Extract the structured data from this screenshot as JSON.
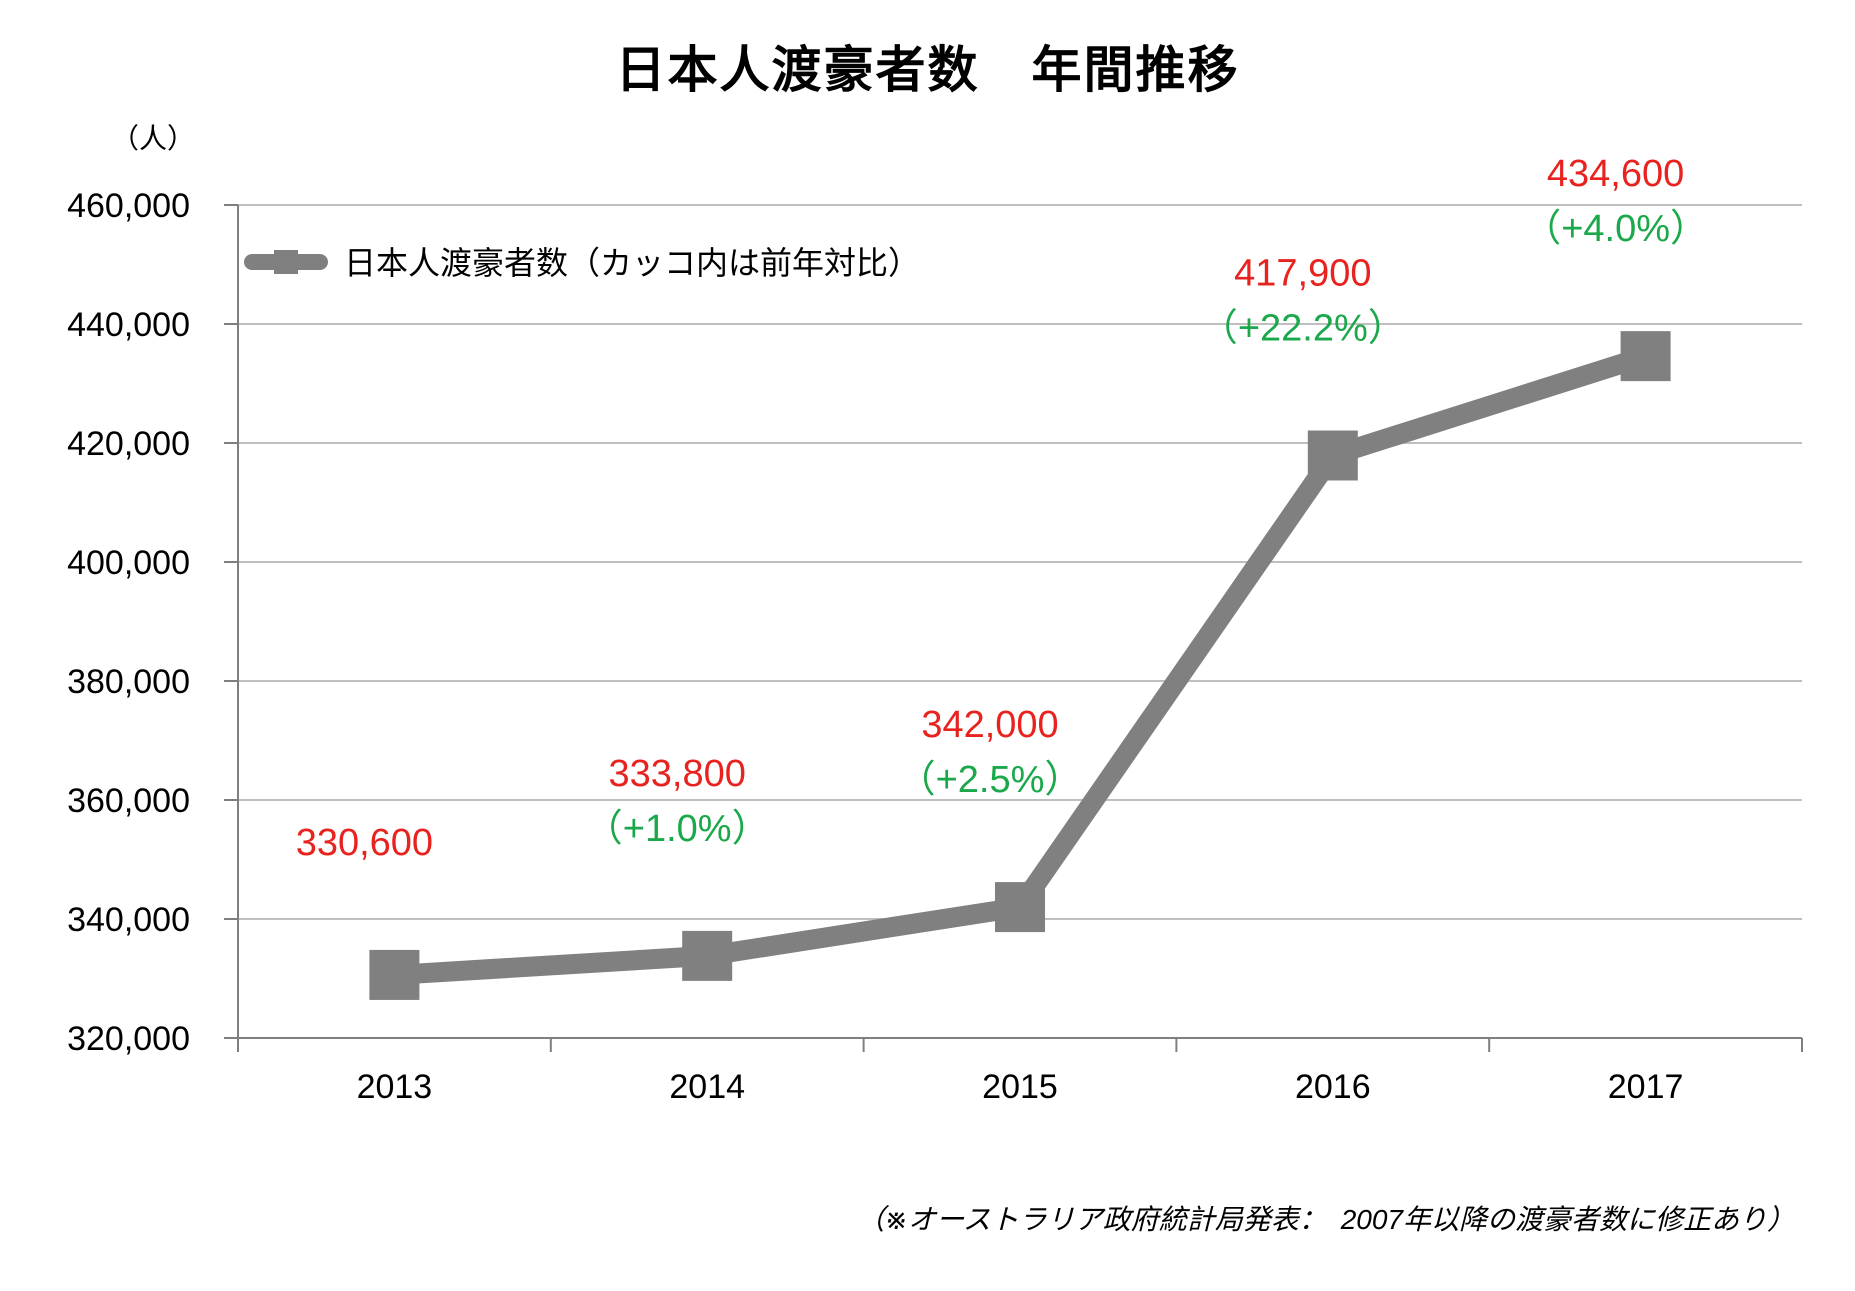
{
  "chart_data": {
    "type": "line",
    "title": "日本人渡豪者数　年間推移",
    "ylabel": "（人）",
    "xlabel": "",
    "categories": [
      "2013",
      "2014",
      "2015",
      "2016",
      "2017"
    ],
    "series": [
      {
        "name": "日本人渡豪者数（カッコ内は前年対比）",
        "values": [
          330600,
          333800,
          342000,
          417900,
          434600
        ],
        "value_labels": [
          "330,600",
          "333,800",
          "342,000",
          "417,900",
          "434,600"
        ],
        "growth_labels": [
          "",
          "（+1.0%）",
          "（+2.5%）",
          "（+22.2%）",
          "（+4.0%）"
        ]
      }
    ],
    "ylim": [
      320000,
      460000
    ],
    "yticks": [
      320000,
      340000,
      360000,
      380000,
      400000,
      420000,
      440000,
      460000
    ],
    "ytick_labels": [
      "320,000",
      "340,000",
      "360,000",
      "380,000",
      "400,000",
      "420,000",
      "440,000",
      "460,000"
    ],
    "grid": true,
    "legend_position": "top-left",
    "colors": {
      "line": "#808080",
      "value_label": "#e8231f",
      "growth_label": "#1aa84a",
      "grid": "#bfbfbf",
      "axis": "#7f7f7f"
    }
  },
  "footnote": "（※オーストラリア政府統計局発表：　2007年以降の渡豪者数に修正あり）"
}
